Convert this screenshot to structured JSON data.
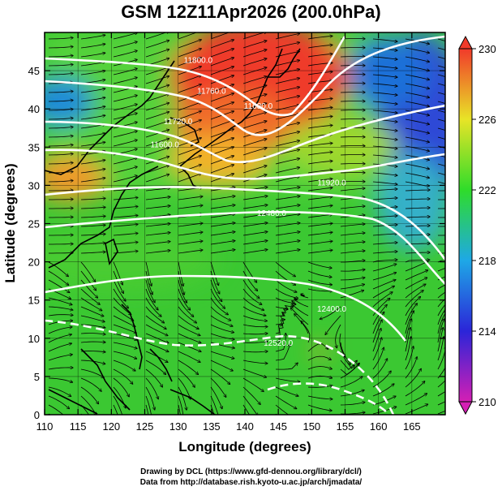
{
  "title": "GSM 12Z11Apr2026 (200.0hPa)",
  "xlabel": "Longitude (degrees)",
  "ylabel": "Latitude  (degrees)",
  "lon_ticks": [
    "110",
    "115",
    "120",
    "125",
    "130",
    "135",
    "140",
    "145",
    "150",
    "155",
    "160",
    "165"
  ],
  "lat_ticks": [
    "0",
    "5",
    "10",
    "15",
    "20",
    "25",
    "30",
    "35",
    "40",
    "45"
  ],
  "lon_range": [
    110,
    170
  ],
  "lat_range": [
    0,
    50
  ],
  "colorbar": {
    "labels": [
      "210",
      "214",
      "218",
      "222",
      "226",
      "230"
    ],
    "values": [
      210,
      214,
      218,
      222,
      226,
      230
    ],
    "range": [
      210,
      230
    ],
    "colors": [
      "#d41fb4",
      "#2b25d8",
      "#1ea8e6",
      "#2fdc2a",
      "#e8e427",
      "#f13a2a"
    ]
  },
  "contours": [
    {
      "label": "11800.0",
      "lon": 133,
      "lat": 46
    },
    {
      "label": "11760.0",
      "lon": 135,
      "lat": 42
    },
    {
      "label": "11680.0",
      "lon": 142,
      "lat": 40
    },
    {
      "label": "11720.0",
      "lon": 130,
      "lat": 38
    },
    {
      "label": "11600.0",
      "lon": 128,
      "lat": 35
    },
    {
      "label": "11920.0",
      "lon": 153,
      "lat": 30
    },
    {
      "label": "12480.0",
      "lon": 144,
      "lat": 26
    },
    {
      "label": "12400.0",
      "lon": 153,
      "lat": 13.5
    },
    {
      "label": "12520.0",
      "lon": 145,
      "lat": 9
    }
  ],
  "credits": [
    "Drawing by DCL (https://www.gfd-dennou.org/library/dcl/)",
    "Data from http://database.rish.kyoto-u.ac.jp/arch/jmadata/"
  ]
}
